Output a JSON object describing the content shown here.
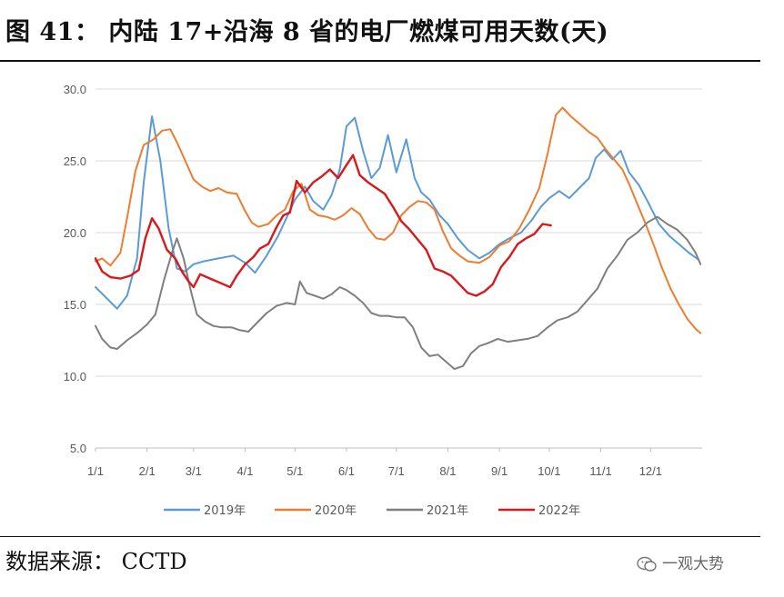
{
  "header": {
    "title": "图 41：  内陆 17+沿海 8 省的电厂燃煤可用天数(天)"
  },
  "footer": {
    "source": "数据来源：  CCTD",
    "watermark": "一观大势",
    "watermark_icon": "wechat-icon"
  },
  "chart_data": {
    "type": "line",
    "title": "",
    "xlabel": "",
    "ylabel": "",
    "ylim": [
      5.0,
      30.0
    ],
    "yticks": [
      "5.0",
      "10.0",
      "15.0",
      "20.0",
      "25.0",
      "30.0"
    ],
    "x_domain": [
      1,
      366
    ],
    "xticks": [
      {
        "label": "1/1",
        "day": 1
      },
      {
        "label": "2/1",
        "day": 32
      },
      {
        "label": "3/1",
        "day": 60
      },
      {
        "label": "4/1",
        "day": 91
      },
      {
        "label": "5/1",
        "day": 121
      },
      {
        "label": "6/1",
        "day": 152
      },
      {
        "label": "7/1",
        "day": 182
      },
      {
        "label": "8/1",
        "day": 213
      },
      {
        "label": "9/1",
        "day": 244
      },
      {
        "label": "10/1",
        "day": 274
      },
      {
        "label": "11/1",
        "day": 305
      },
      {
        "label": "12/1",
        "day": 335
      }
    ],
    "grid": true,
    "legend_position": "bottom",
    "series": [
      {
        "name": "2019年",
        "color": "#5b9bd5",
        "points": [
          [
            1,
            16.2
          ],
          [
            8,
            15.4
          ],
          [
            14,
            14.7
          ],
          [
            20,
            15.6
          ],
          [
            26,
            18.2
          ],
          [
            30,
            23.5
          ],
          [
            35,
            28.1
          ],
          [
            40,
            25.0
          ],
          [
            45,
            20.3
          ],
          [
            50,
            17.5
          ],
          [
            55,
            17.3
          ],
          [
            60,
            17.8
          ],
          [
            66,
            18.0
          ],
          [
            75,
            18.2
          ],
          [
            84,
            18.4
          ],
          [
            91,
            17.9
          ],
          [
            97,
            17.2
          ],
          [
            104,
            18.4
          ],
          [
            111,
            19.8
          ],
          [
            117,
            21.3
          ],
          [
            121,
            22.3
          ],
          [
            127,
            23.2
          ],
          [
            132,
            22.2
          ],
          [
            138,
            21.6
          ],
          [
            143,
            22.6
          ],
          [
            148,
            24.4
          ],
          [
            152,
            27.4
          ],
          [
            157,
            28.0
          ],
          [
            162,
            25.7
          ],
          [
            167,
            23.8
          ],
          [
            172,
            24.5
          ],
          [
            177,
            26.8
          ],
          [
            182,
            24.2
          ],
          [
            188,
            26.5
          ],
          [
            193,
            23.8
          ],
          [
            197,
            22.8
          ],
          [
            202,
            22.3
          ],
          [
            208,
            21.2
          ],
          [
            213,
            20.6
          ],
          [
            219,
            19.6
          ],
          [
            225,
            18.8
          ],
          [
            232,
            18.2
          ],
          [
            238,
            18.6
          ],
          [
            244,
            19.2
          ],
          [
            250,
            19.6
          ],
          [
            257,
            20.0
          ],
          [
            263,
            20.8
          ],
          [
            269,
            21.8
          ],
          [
            274,
            22.4
          ],
          [
            280,
            22.9
          ],
          [
            286,
            22.4
          ],
          [
            292,
            23.1
          ],
          [
            298,
            23.8
          ],
          [
            302,
            25.2
          ],
          [
            307,
            25.8
          ],
          [
            312,
            25.1
          ],
          [
            317,
            25.7
          ],
          [
            322,
            24.2
          ],
          [
            328,
            23.3
          ],
          [
            334,
            22.0
          ],
          [
            340,
            20.6
          ],
          [
            346,
            19.8
          ],
          [
            352,
            19.2
          ],
          [
            358,
            18.6
          ],
          [
            364,
            18.1
          ]
        ]
      },
      {
        "name": "2020年",
        "color": "#ed7d31",
        "points": [
          [
            1,
            18.0
          ],
          [
            5,
            18.2
          ],
          [
            10,
            17.7
          ],
          [
            16,
            18.6
          ],
          [
            20,
            21.0
          ],
          [
            25,
            24.3
          ],
          [
            30,
            26.1
          ],
          [
            36,
            26.5
          ],
          [
            41,
            27.1
          ],
          [
            46,
            27.2
          ],
          [
            50,
            26.3
          ],
          [
            55,
            25.0
          ],
          [
            60,
            23.7
          ],
          [
            65,
            23.2
          ],
          [
            70,
            22.9
          ],
          [
            75,
            23.1
          ],
          [
            80,
            22.8
          ],
          [
            86,
            22.7
          ],
          [
            91,
            21.5
          ],
          [
            95,
            20.7
          ],
          [
            99,
            20.4
          ],
          [
            105,
            20.6
          ],
          [
            110,
            21.2
          ],
          [
            115,
            21.6
          ],
          [
            120,
            22.9
          ],
          [
            125,
            23.4
          ],
          [
            130,
            21.6
          ],
          [
            135,
            21.2
          ],
          [
            140,
            21.1
          ],
          [
            145,
            20.9
          ],
          [
            150,
            21.2
          ],
          [
            155,
            21.7
          ],
          [
            160,
            21.3
          ],
          [
            165,
            20.3
          ],
          [
            170,
            19.6
          ],
          [
            175,
            19.5
          ],
          [
            180,
            20.0
          ],
          [
            185,
            21.2
          ],
          [
            190,
            21.8
          ],
          [
            195,
            22.2
          ],
          [
            200,
            22.1
          ],
          [
            205,
            21.6
          ],
          [
            210,
            20.1
          ],
          [
            215,
            18.9
          ],
          [
            220,
            18.4
          ],
          [
            225,
            18.0
          ],
          [
            232,
            17.9
          ],
          [
            238,
            18.3
          ],
          [
            244,
            19.1
          ],
          [
            250,
            19.4
          ],
          [
            256,
            20.3
          ],
          [
            262,
            21.6
          ],
          [
            268,
            23.1
          ],
          [
            273,
            25.5
          ],
          [
            278,
            28.2
          ],
          [
            282,
            28.7
          ],
          [
            287,
            28.1
          ],
          [
            292,
            27.6
          ],
          [
            298,
            27.0
          ],
          [
            303,
            26.6
          ],
          [
            308,
            25.8
          ],
          [
            313,
            25.1
          ],
          [
            318,
            24.4
          ],
          [
            322,
            23.4
          ],
          [
            327,
            22.0
          ],
          [
            332,
            20.6
          ],
          [
            337,
            19.1
          ],
          [
            342,
            17.5
          ],
          [
            347,
            16.1
          ],
          [
            352,
            15.0
          ],
          [
            357,
            14.0
          ],
          [
            362,
            13.3
          ],
          [
            365,
            13.0
          ]
        ]
      },
      {
        "name": "2021年",
        "color": "#7f7f7f",
        "points": [
          [
            1,
            13.5
          ],
          [
            5,
            12.6
          ],
          [
            10,
            12.0
          ],
          [
            14,
            11.9
          ],
          [
            20,
            12.5
          ],
          [
            26,
            13.0
          ],
          [
            32,
            13.6
          ],
          [
            37,
            14.3
          ],
          [
            42,
            16.6
          ],
          [
            47,
            18.6
          ],
          [
            50,
            19.6
          ],
          [
            54,
            18.2
          ],
          [
            58,
            16.1
          ],
          [
            62,
            14.3
          ],
          [
            67,
            13.8
          ],
          [
            72,
            13.5
          ],
          [
            77,
            13.4
          ],
          [
            83,
            13.4
          ],
          [
            88,
            13.2
          ],
          [
            93,
            13.1
          ],
          [
            98,
            13.7
          ],
          [
            104,
            14.4
          ],
          [
            110,
            14.9
          ],
          [
            116,
            15.1
          ],
          [
            121,
            15.0
          ],
          [
            124,
            16.6
          ],
          [
            128,
            15.8
          ],
          [
            133,
            15.6
          ],
          [
            138,
            15.4
          ],
          [
            143,
            15.7
          ],
          [
            148,
            16.2
          ],
          [
            152,
            16.0
          ],
          [
            157,
            15.6
          ],
          [
            162,
            15.1
          ],
          [
            167,
            14.4
          ],
          [
            172,
            14.2
          ],
          [
            177,
            14.2
          ],
          [
            182,
            14.1
          ],
          [
            187,
            14.1
          ],
          [
            192,
            13.4
          ],
          [
            197,
            12.0
          ],
          [
            202,
            11.4
          ],
          [
            207,
            11.5
          ],
          [
            212,
            11.0
          ],
          [
            217,
            10.5
          ],
          [
            222,
            10.7
          ],
          [
            227,
            11.6
          ],
          [
            232,
            12.1
          ],
          [
            237,
            12.3
          ],
          [
            243,
            12.6
          ],
          [
            249,
            12.4
          ],
          [
            255,
            12.5
          ],
          [
            261,
            12.6
          ],
          [
            267,
            12.8
          ],
          [
            273,
            13.4
          ],
          [
            279,
            13.9
          ],
          [
            285,
            14.1
          ],
          [
            291,
            14.5
          ],
          [
            297,
            15.3
          ],
          [
            303,
            16.1
          ],
          [
            309,
            17.5
          ],
          [
            315,
            18.4
          ],
          [
            321,
            19.5
          ],
          [
            327,
            20.0
          ],
          [
            333,
            20.7
          ],
          [
            339,
            21.1
          ],
          [
            345,
            20.6
          ],
          [
            351,
            20.2
          ],
          [
            357,
            19.5
          ],
          [
            362,
            18.6
          ],
          [
            365,
            17.8
          ]
        ]
      },
      {
        "name": "2022年",
        "color": "#d7191c",
        "points": [
          [
            1,
            18.2
          ],
          [
            5,
            17.3
          ],
          [
            10,
            16.9
          ],
          [
            16,
            16.8
          ],
          [
            22,
            17.0
          ],
          [
            27,
            17.4
          ],
          [
            31,
            19.6
          ],
          [
            35,
            21.0
          ],
          [
            39,
            20.3
          ],
          [
            44,
            18.8
          ],
          [
            49,
            18.2
          ],
          [
            53,
            17.3
          ],
          [
            57,
            16.6
          ],
          [
            60,
            16.2
          ],
          [
            64,
            17.1
          ],
          [
            70,
            16.8
          ],
          [
            76,
            16.5
          ],
          [
            82,
            16.2
          ],
          [
            86,
            17.0
          ],
          [
            91,
            17.8
          ],
          [
            96,
            18.3
          ],
          [
            100,
            18.9
          ],
          [
            105,
            19.2
          ],
          [
            110,
            20.4
          ],
          [
            114,
            21.2
          ],
          [
            118,
            21.4
          ],
          [
            122,
            23.6
          ],
          [
            127,
            22.8
          ],
          [
            132,
            23.5
          ],
          [
            137,
            23.9
          ],
          [
            142,
            24.4
          ],
          [
            147,
            23.8
          ],
          [
            152,
            24.7
          ],
          [
            156,
            25.4
          ],
          [
            160,
            24.0
          ],
          [
            165,
            23.5
          ],
          [
            170,
            23.1
          ],
          [
            175,
            22.7
          ],
          [
            180,
            21.8
          ],
          [
            185,
            20.8
          ],
          [
            190,
            20.2
          ],
          [
            195,
            19.5
          ],
          [
            200,
            18.8
          ],
          [
            205,
            17.5
          ],
          [
            210,
            17.3
          ],
          [
            215,
            17.0
          ],
          [
            220,
            16.4
          ],
          [
            225,
            15.8
          ],
          [
            230,
            15.6
          ],
          [
            235,
            15.9
          ],
          [
            240,
            16.4
          ],
          [
            245,
            17.6
          ],
          [
            250,
            18.3
          ],
          [
            255,
            19.2
          ],
          [
            260,
            19.6
          ],
          [
            265,
            19.9
          ],
          [
            270,
            20.6
          ],
          [
            275,
            20.5
          ]
        ]
      }
    ]
  }
}
